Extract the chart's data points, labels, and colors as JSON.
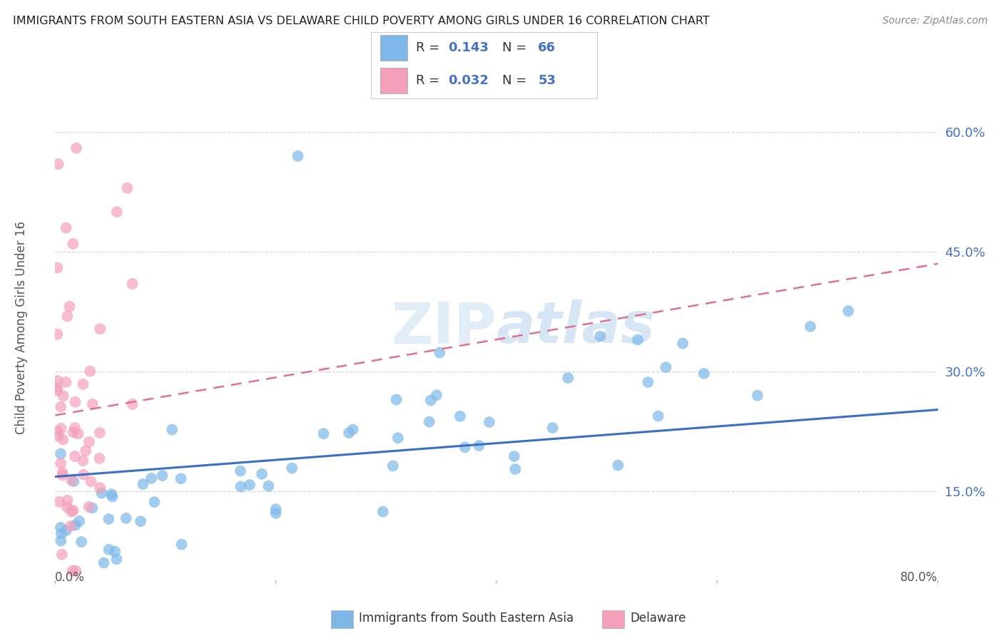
{
  "title": "IMMIGRANTS FROM SOUTH EASTERN ASIA VS DELAWARE CHILD POVERTY AMONG GIRLS UNDER 16 CORRELATION CHART",
  "source": "Source: ZipAtlas.com",
  "ylabel": "Child Poverty Among Girls Under 16",
  "y_tick_vals": [
    0.15,
    0.3,
    0.45,
    0.6
  ],
  "xlim": [
    0.0,
    0.8
  ],
  "ylim": [
    0.04,
    0.67
  ],
  "watermark": "ZIPatlas",
  "series1_color": "#7db8e8",
  "series2_color": "#f4a0b8",
  "series1_line_color": "#3a6fc4",
  "series2_line_color": "#e07090",
  "R1": 0.143,
  "N1": 66,
  "R2": 0.032,
  "N2": 53,
  "legend_color": "#4472c4",
  "background_color": "#ffffff",
  "grid_color": "#d0d0d0",
  "title_color": "#222222",
  "bottom_legend_labels": [
    "Immigrants from South Eastern Asia",
    "Delaware"
  ],
  "series1_alpha": 0.7,
  "series2_alpha": 0.7,
  "dot_size": 130,
  "blue_line_x": [
    0.0,
    0.8
  ],
  "blue_line_y": [
    0.168,
    0.252
  ],
  "pink_line_x": [
    0.0,
    0.8
  ],
  "pink_line_y": [
    0.245,
    0.435
  ]
}
